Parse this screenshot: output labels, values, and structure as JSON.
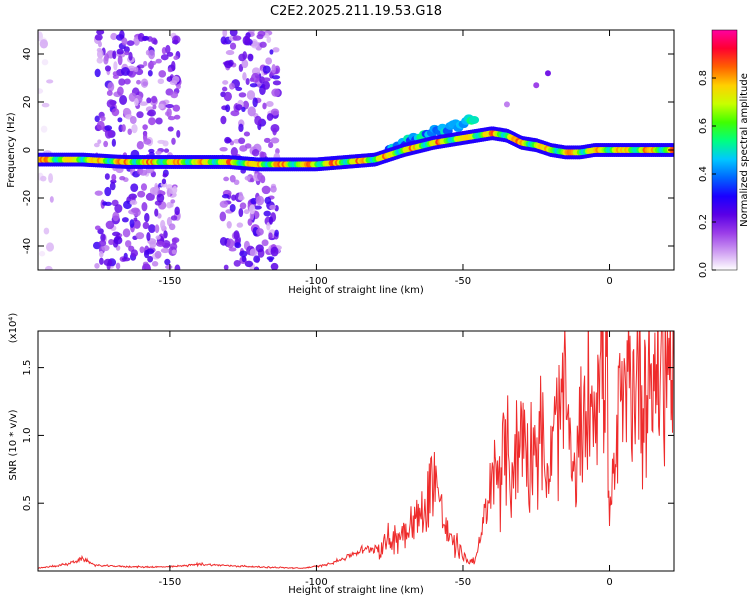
{
  "title": "C2E2.2025.211.19.53.G18",
  "colors": {
    "snr_line": "#ee2b2b",
    "axis": "#000000",
    "background": "#ffffff"
  },
  "chart_data": [
    {
      "type": "heatmap",
      "xlabel": "Height of straight line (km)",
      "ylabel": "Frequency (Hz)",
      "xlim": [
        -195,
        22
      ],
      "ylim": [
        -50,
        50
      ],
      "xticks": [
        -150,
        -100,
        -50,
        0
      ],
      "yticks": [
        -40,
        -20,
        0,
        20,
        40
      ],
      "colorbar": {
        "label": "Normalized spectral amplitude",
        "range": [
          0,
          1
        ],
        "ticks": [
          "0.0",
          "0.2",
          "0.4",
          "0.6",
          "0.8"
        ],
        "colormap": [
          "#ffffff",
          "#ce9cf2",
          "#9b3ee8",
          "#5a00e6",
          "#1a00ff",
          "#0066ff",
          "#00c8ff",
          "#00ff80",
          "#40ff00",
          "#c8ff00",
          "#ffd000",
          "#ff6000",
          "#ff0030",
          "#ff00a0"
        ]
      },
      "ridge": {
        "x": [
          -195,
          -180,
          -165,
          -150,
          -140,
          -130,
          -120,
          -110,
          -100,
          -90,
          -80,
          -70,
          -60,
          -50,
          -45,
          -40,
          -35,
          -30,
          -25,
          -20,
          -15,
          -10,
          -5,
          0,
          5,
          10,
          15,
          20,
          22
        ],
        "y": [
          -4,
          -4,
          -5,
          -5,
          -5,
          -5,
          -6,
          -6,
          -6,
          -5,
          -4,
          0,
          3,
          5,
          6,
          7,
          6,
          3,
          2,
          0,
          -1,
          -1,
          0,
          0,
          0,
          0,
          0,
          0,
          0
        ]
      },
      "upper_branch": {
        "x": [
          -75,
          -70,
          -65,
          -60,
          -55,
          -50,
          -46
        ],
        "y": [
          0,
          3,
          6,
          8,
          9,
          11,
          13
        ]
      },
      "isolated_points": [
        {
          "x": -21,
          "y": 32,
          "amplitude": 0.2
        },
        {
          "x": -25,
          "y": 27,
          "amplitude": 0.15
        },
        {
          "x": -35,
          "y": 19,
          "amplitude": 0.1
        }
      ],
      "noise_bands": [
        {
          "x_range": [
            -175,
            -147
          ],
          "amplitude": 0.25
        },
        {
          "x_range": [
            -132,
            -113
          ],
          "amplitude": 0.25
        },
        {
          "x_range": [
            -195,
            -190
          ],
          "amplitude": 0.08
        }
      ]
    },
    {
      "type": "line",
      "xlabel": "Height of straight line (km)",
      "ylabel": "SNR (10 * v/v)",
      "yscale_label": "(x10⁴)",
      "xlim": [
        -195,
        22
      ],
      "ylim": [
        0,
        1.77
      ],
      "xticks": [
        -150,
        -100,
        -50,
        0
      ],
      "yticks": [
        "0.5",
        "1.0",
        "1.5"
      ],
      "series": [
        {
          "values_description_free": true,
          "x": [
            -195,
            -185,
            -180,
            -175,
            -160,
            -150,
            -140,
            -120,
            -105,
            -98,
            -92,
            -85,
            -78,
            -72,
            -68,
            -63,
            -60,
            -57,
            -55,
            -52,
            -50,
            -48,
            -45,
            -42,
            -39,
            -36,
            -33,
            -30,
            -27,
            -24,
            -21,
            -18,
            -15,
            -12,
            -9,
            -6,
            -3,
            -1,
            0,
            3,
            6,
            9,
            12,
            15,
            18,
            22
          ],
          "y": [
            0.02,
            0.05,
            0.09,
            0.04,
            0.03,
            0.03,
            0.05,
            0.03,
            0.02,
            0.04,
            0.08,
            0.15,
            0.18,
            0.27,
            0.35,
            0.44,
            0.78,
            0.4,
            0.25,
            0.18,
            0.12,
            0.06,
            0.12,
            0.44,
            0.72,
            0.85,
            0.76,
            1.05,
            0.88,
            1.0,
            0.66,
            1.08,
            1.25,
            0.62,
            1.1,
            1.32,
            1.45,
            1.72,
            0.32,
            1.1,
            1.3,
            1.42,
            1.38,
            1.45,
            1.58,
            1.5
          ]
        }
      ]
    }
  ]
}
